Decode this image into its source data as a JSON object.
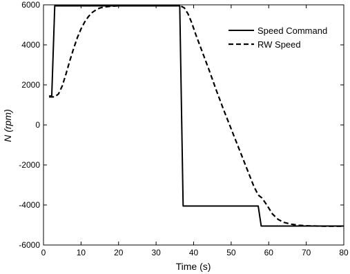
{
  "chart_data": {
    "type": "line",
    "title": "",
    "xlabel": "Time (s)",
    "ylabel_var": "N",
    "ylabel_unit": "(rpm)",
    "xlim": [
      0,
      80
    ],
    "ylim": [
      -6000,
      6000
    ],
    "xticks": [
      0,
      10,
      20,
      30,
      40,
      50,
      60,
      70,
      80
    ],
    "yticks": [
      -6000,
      -4000,
      -2000,
      0,
      2000,
      4000,
      6000
    ],
    "grid": false,
    "legend_position": "top-right",
    "series": [
      {
        "name": "Speed Command",
        "style": "solid",
        "color": "#000000",
        "points": [
          [
            1.5,
            1450
          ],
          [
            2.2,
            1450
          ],
          [
            3.0,
            5950
          ],
          [
            36.3,
            5950
          ],
          [
            37.2,
            -4050
          ],
          [
            57.2,
            -4050
          ],
          [
            58.0,
            -5050
          ],
          [
            80,
            -5050
          ]
        ]
      },
      {
        "name": "RW Speed",
        "style": "dashed",
        "color": "#000000",
        "points": [
          [
            1.5,
            1400
          ],
          [
            3.0,
            1400
          ],
          [
            4.0,
            1550
          ],
          [
            5.0,
            1950
          ],
          [
            6.0,
            2550
          ],
          [
            7.0,
            3200
          ],
          [
            8.0,
            3800
          ],
          [
            9.0,
            4350
          ],
          [
            10.0,
            4800
          ],
          [
            11.0,
            5150
          ],
          [
            12.0,
            5420
          ],
          [
            13.0,
            5620
          ],
          [
            14.0,
            5750
          ],
          [
            15.0,
            5840
          ],
          [
            16.0,
            5890
          ],
          [
            18.0,
            5930
          ],
          [
            20.0,
            5950
          ],
          [
            36.5,
            5950
          ],
          [
            37.5,
            5850
          ],
          [
            38.5,
            5550
          ],
          [
            39.5,
            5100
          ],
          [
            40.5,
            4550
          ],
          [
            42.0,
            3800
          ],
          [
            44.0,
            2800
          ],
          [
            46.0,
            1750
          ],
          [
            48.0,
            750
          ],
          [
            50.0,
            -200
          ],
          [
            52.0,
            -1150
          ],
          [
            54.0,
            -2100
          ],
          [
            56.0,
            -3050
          ],
          [
            57.2,
            -3500
          ],
          [
            58.2,
            -3650
          ],
          [
            59.5,
            -4000
          ],
          [
            61.0,
            -4450
          ],
          [
            62.5,
            -4720
          ],
          [
            64.0,
            -4870
          ],
          [
            66.0,
            -4960
          ],
          [
            68.0,
            -5010
          ],
          [
            70.0,
            -5040
          ],
          [
            75.0,
            -5060
          ],
          [
            80.0,
            -5060
          ]
        ]
      }
    ]
  }
}
